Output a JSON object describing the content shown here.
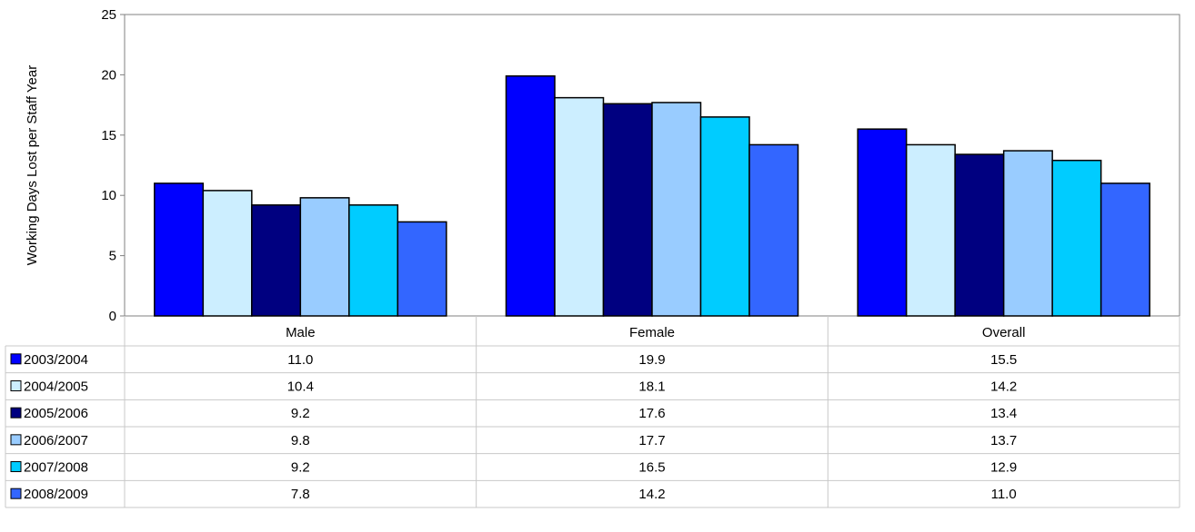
{
  "chart_data": {
    "type": "bar",
    "categories": [
      "Male",
      "Female",
      "Overall"
    ],
    "series": [
      {
        "name": "2003/2004",
        "color": "#0000ff",
        "values": [
          11.0,
          19.9,
          15.5
        ],
        "labels": [
          "11.0",
          "19.9",
          "15.5"
        ]
      },
      {
        "name": "2004/2005",
        "color": "#cceeff",
        "values": [
          10.4,
          18.1,
          14.2
        ],
        "labels": [
          "10.4",
          "18.1",
          "14.2"
        ]
      },
      {
        "name": "2005/2006",
        "color": "#000080",
        "values": [
          9.2,
          17.6,
          13.4
        ],
        "labels": [
          "9.2",
          "17.6",
          "13.4"
        ]
      },
      {
        "name": "2006/2007",
        "color": "#99ccff",
        "values": [
          9.8,
          17.7,
          13.7
        ],
        "labels": [
          "9.8",
          "17.7",
          "13.7"
        ]
      },
      {
        "name": "2007/2008",
        "color": "#00ccff",
        "values": [
          9.2,
          16.5,
          12.9
        ],
        "labels": [
          "9.2",
          "16.5",
          "12.9"
        ]
      },
      {
        "name": "2008/2009",
        "color": "#3366ff",
        "values": [
          7.8,
          14.2,
          11.0
        ],
        "labels": [
          "7.8",
          "14.2",
          "11.0"
        ]
      }
    ],
    "ylabel": "Working Days Lost per Staff Year",
    "ylim": [
      0,
      25
    ],
    "yticks": [
      0,
      5,
      10,
      15,
      20,
      25
    ],
    "ytick_labels": [
      "0",
      "5",
      "10",
      "15",
      "20",
      "25"
    ],
    "grid": false,
    "legend": "data-table-left",
    "data_table": true
  }
}
